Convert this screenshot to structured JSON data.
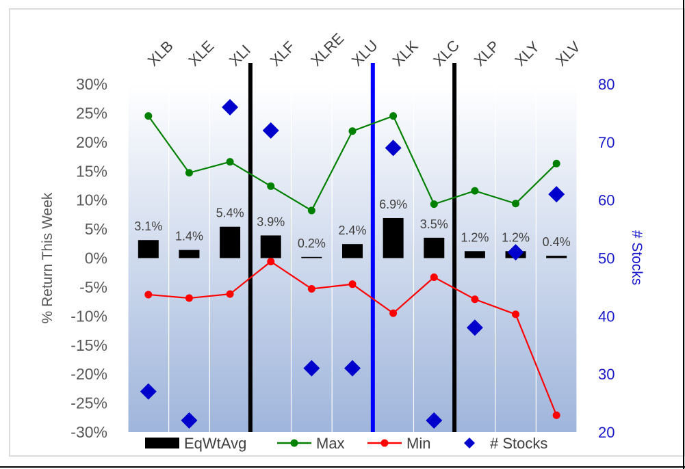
{
  "chart_data": {
    "type": "bar+line+scatter",
    "categories": [
      "XLB",
      "XLE",
      "XLI",
      "XLF",
      "XLRE",
      "XLU",
      "XLK",
      "XLC",
      "XLP",
      "XLY",
      "XLV"
    ],
    "bar_labels": [
      "3.1%",
      "1.4%",
      "5.4%",
      "3.9%",
      "0.2%",
      "2.4%",
      "6.9%",
      "3.5%",
      "1.2%",
      "1.2%",
      "0.4%"
    ],
    "series": [
      {
        "name": "EqWtAvg",
        "type": "bar",
        "axis": "left",
        "color": "#000000",
        "values": [
          3.1,
          1.4,
          5.4,
          3.9,
          0.2,
          2.4,
          6.9,
          3.5,
          1.2,
          1.2,
          0.4
        ]
      },
      {
        "name": "Max",
        "type": "line",
        "axis": "left",
        "color": "#008000",
        "values": [
          24.5,
          14.7,
          16.6,
          12.4,
          8.2,
          21.9,
          24.5,
          9.3,
          11.6,
          9.4,
          16.3
        ]
      },
      {
        "name": "Min",
        "type": "line",
        "axis": "left",
        "color": "#ff0000",
        "values": [
          -6.3,
          -6.9,
          -6.2,
          -0.6,
          -5.3,
          -4.5,
          -9.5,
          -3.3,
          -7.1,
          -9.7,
          -27.1
        ]
      },
      {
        "name": "# Stocks",
        "type": "scatter",
        "axis": "right",
        "color": "#0000cc",
        "values": [
          27,
          22,
          76,
          72,
          31,
          31,
          69,
          22,
          38,
          51,
          61
        ]
      }
    ],
    "ylabel": "% Return This Week",
    "y2label": "# Stocks",
    "ylim": [
      -30,
      30
    ],
    "y2lim": [
      20,
      80
    ],
    "yticks": [
      "30%",
      "25%",
      "20%",
      "15%",
      "10%",
      "5%",
      "0%",
      "-5%",
      "-10%",
      "-15%",
      "-20%",
      "-25%",
      "-30%"
    ],
    "y2ticks": [
      "80",
      "70",
      "60",
      "50",
      "40",
      "30",
      "20"
    ],
    "dividers": [
      {
        "after_category_index": 2,
        "color": "#000000"
      },
      {
        "after_category_index": 5,
        "color": "#0000ff"
      },
      {
        "after_category_index": 7,
        "color": "#000000"
      }
    ],
    "legend": [
      "EqWtAvg",
      "Max",
      "Min",
      "# Stocks"
    ],
    "legend_position": "bottom",
    "grid": "vertical",
    "background": "gradient"
  }
}
